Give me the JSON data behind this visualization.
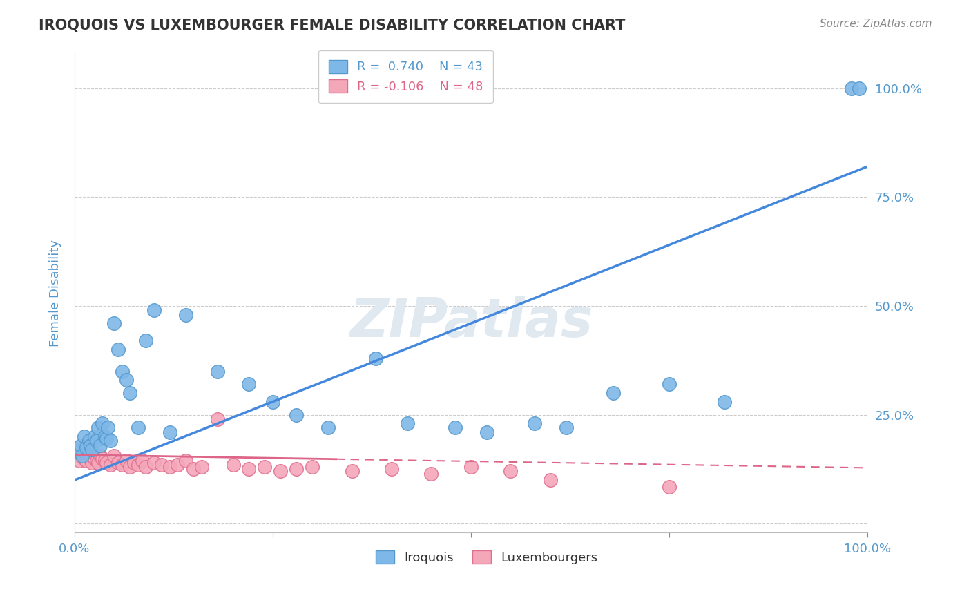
{
  "title": "IROQUOIS VS LUXEMBOURGER FEMALE DISABILITY CORRELATION CHART",
  "source": "Source: ZipAtlas.com",
  "ylabel": "Female Disability",
  "xlim": [
    0.0,
    1.0
  ],
  "ylim": [
    -0.02,
    1.08
  ],
  "iroquois_color": "#7eb8e8",
  "iroquois_edge": "#5599cc",
  "luxembourger_color": "#f4a7b9",
  "luxembourger_edge": "#e07090",
  "iroquois_R": 0.74,
  "iroquois_N": 43,
  "luxembourger_R": -0.106,
  "luxembourger_N": 48,
  "iroquois_x": [
    0.005,
    0.008,
    0.01,
    0.012,
    0.015,
    0.018,
    0.02,
    0.022,
    0.025,
    0.028,
    0.03,
    0.032,
    0.035,
    0.038,
    0.04,
    0.042,
    0.045,
    0.05,
    0.055,
    0.06,
    0.065,
    0.07,
    0.08,
    0.09,
    0.1,
    0.12,
    0.14,
    0.18,
    0.22,
    0.25,
    0.28,
    0.32,
    0.38,
    0.42,
    0.48,
    0.52,
    0.58,
    0.62,
    0.68,
    0.75,
    0.82,
    0.98,
    0.99
  ],
  "iroquois_y": [
    0.17,
    0.18,
    0.155,
    0.2,
    0.175,
    0.19,
    0.18,
    0.17,
    0.2,
    0.19,
    0.22,
    0.18,
    0.23,
    0.2,
    0.195,
    0.22,
    0.19,
    0.46,
    0.4,
    0.35,
    0.33,
    0.3,
    0.22,
    0.42,
    0.49,
    0.21,
    0.48,
    0.35,
    0.32,
    0.28,
    0.25,
    0.22,
    0.38,
    0.23,
    0.22,
    0.21,
    0.23,
    0.22,
    0.3,
    0.32,
    0.28,
    1.0,
    1.0
  ],
  "luxembourger_x": [
    0.002,
    0.004,
    0.006,
    0.008,
    0.01,
    0.012,
    0.015,
    0.018,
    0.02,
    0.022,
    0.025,
    0.028,
    0.03,
    0.032,
    0.035,
    0.038,
    0.04,
    0.045,
    0.05,
    0.055,
    0.06,
    0.065,
    0.07,
    0.075,
    0.08,
    0.085,
    0.09,
    0.1,
    0.11,
    0.12,
    0.13,
    0.14,
    0.15,
    0.16,
    0.18,
    0.2,
    0.22,
    0.24,
    0.26,
    0.28,
    0.3,
    0.35,
    0.4,
    0.45,
    0.5,
    0.55,
    0.6,
    0.75
  ],
  "luxembourger_y": [
    0.155,
    0.16,
    0.145,
    0.16,
    0.155,
    0.15,
    0.145,
    0.16,
    0.155,
    0.14,
    0.15,
    0.145,
    0.14,
    0.155,
    0.15,
    0.145,
    0.14,
    0.135,
    0.155,
    0.14,
    0.135,
    0.145,
    0.13,
    0.14,
    0.135,
    0.145,
    0.13,
    0.14,
    0.135,
    0.13,
    0.135,
    0.145,
    0.125,
    0.13,
    0.24,
    0.135,
    0.125,
    0.13,
    0.12,
    0.125,
    0.13,
    0.12,
    0.125,
    0.115,
    0.13,
    0.12,
    0.1,
    0.085
  ],
  "watermark": "ZIPatlas",
  "background_color": "#ffffff",
  "grid_color": "#cccccc",
  "title_color": "#333333",
  "tick_label_color": "#5599cc",
  "axis_label_color": "#5599cc",
  "line_blue": "#4488dd",
  "line_pink": "#dd6688"
}
